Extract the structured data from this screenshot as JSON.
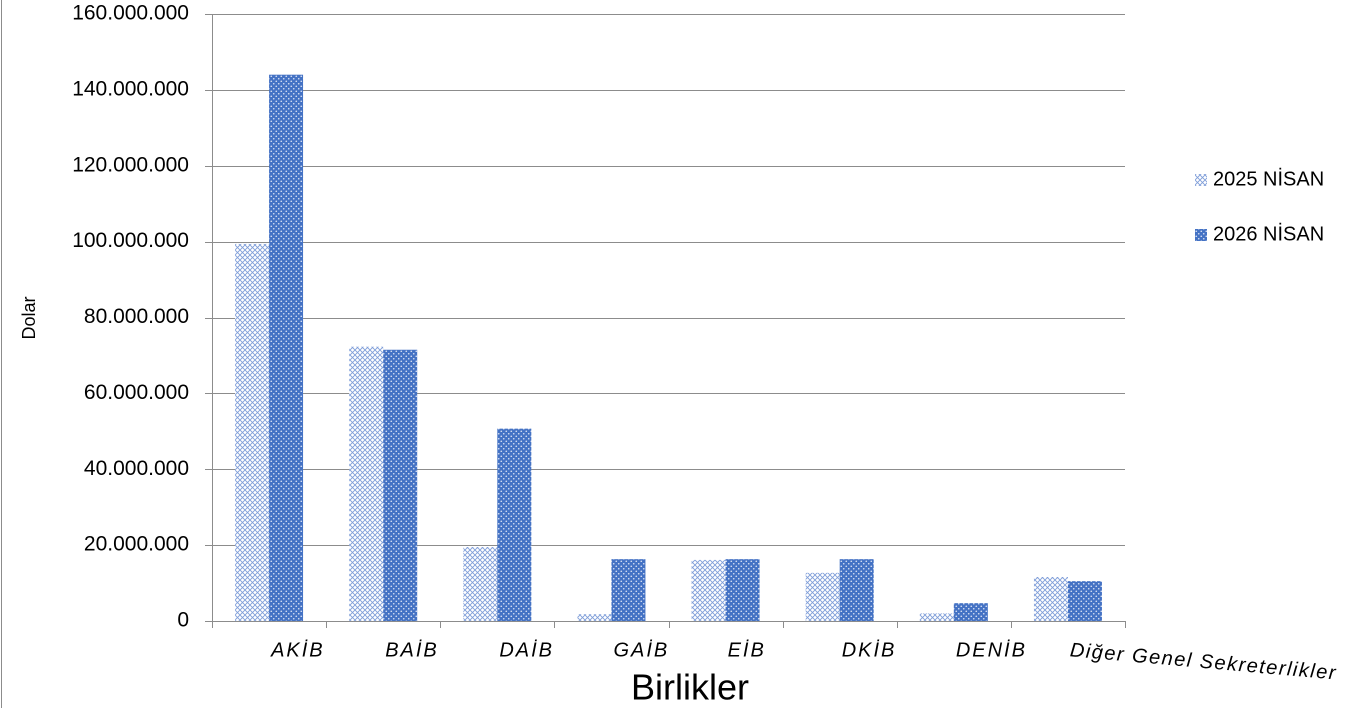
{
  "chart_data": {
    "type": "bar",
    "xlabel": "Birlikler",
    "ylabel": "Dolar",
    "categories": [
      "AKİB",
      "BAİB",
      "DAİB",
      "GAİB",
      "EİB",
      "DKİB",
      "DENİB",
      "Diğer Genel Sekreterlikler"
    ],
    "series": [
      {
        "name": "2025 NİSAN",
        "color": "#7f9ed9",
        "values": [
          99400000,
          72300000,
          19500000,
          1800000,
          16100000,
          12700000,
          2000000,
          11600000
        ]
      },
      {
        "name": "2026 NİSAN",
        "color": "#4472c4",
        "values": [
          144000000,
          71500000,
          50700000,
          16300000,
          16300000,
          16300000,
          4700000,
          10500000
        ]
      }
    ],
    "ylim": [
      0,
      160000000
    ],
    "yticks": [
      0,
      20000000,
      40000000,
      60000000,
      80000000,
      100000000,
      120000000,
      140000000,
      160000000
    ],
    "ytick_labels": [
      "0",
      "20.000.000",
      "40.000.000",
      "60.000.000",
      "80.000.000",
      "100.000.000",
      "120.000.000",
      "140.000.000",
      "160.000.000"
    ],
    "grid": true,
    "legend_position": "right"
  }
}
